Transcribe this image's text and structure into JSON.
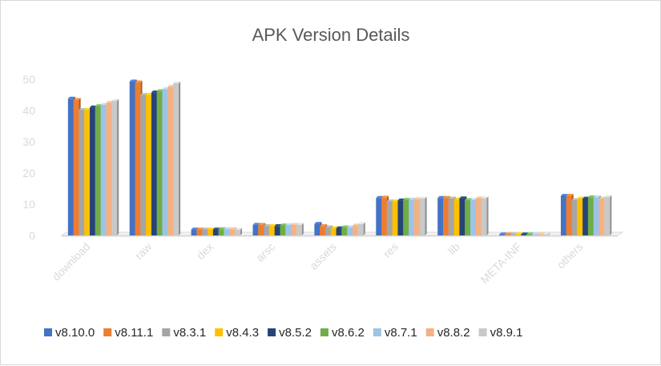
{
  "chart_data": {
    "type": "bar",
    "title": "APK Version Details",
    "xlabel": "",
    "ylabel": "",
    "ylim": [
      0,
      50
    ],
    "yticks": [
      0,
      10,
      20,
      30,
      40,
      50
    ],
    "grid": false,
    "legend_position": "bottom",
    "categories": [
      "download",
      "raw",
      "dex",
      "arsc",
      "assets",
      "res",
      "lib",
      "META-INF",
      "others"
    ],
    "series": [
      {
        "name": "v8.10.0",
        "color": "#4472c4",
        "values": [
          43.8,
          49.3,
          1.9,
          3.4,
          3.7,
          12.0,
          12.0,
          0.3,
          12.7
        ]
      },
      {
        "name": "v8.11.1",
        "color": "#ed7d31",
        "values": [
          43.4,
          49.0,
          1.9,
          3.4,
          3.0,
          12.1,
          12.0,
          0.3,
          12.7
        ]
      },
      {
        "name": "v8.3.1",
        "color": "#a5a5a5",
        "values": [
          40.2,
          45.0,
          1.9,
          3.0,
          2.6,
          10.9,
          11.8,
          0.3,
          11.3
        ]
      },
      {
        "name": "v8.4.3",
        "color": "#ffc000",
        "values": [
          40.2,
          45.0,
          1.9,
          3.0,
          2.3,
          10.9,
          11.5,
          0.3,
          11.8
        ]
      },
      {
        "name": "v8.5.2",
        "color": "#264478",
        "values": [
          41.0,
          45.8,
          1.9,
          3.0,
          2.3,
          11.2,
          11.9,
          0.3,
          11.8
        ]
      },
      {
        "name": "v8.6.2",
        "color": "#70ad47",
        "values": [
          41.4,
          46.2,
          2.0,
          3.2,
          2.6,
          11.4,
          11.3,
          0.3,
          12.2
        ]
      },
      {
        "name": "v8.7.1",
        "color": "#9dc3e6",
        "values": [
          41.8,
          46.8,
          2.0,
          3.3,
          2.6,
          11.5,
          11.3,
          0.3,
          12.2
        ]
      },
      {
        "name": "v8.8.2",
        "color": "#f4b183",
        "values": [
          42.5,
          47.6,
          2.0,
          3.4,
          3.2,
          11.6,
          11.9,
          0.3,
          11.8
        ]
      },
      {
        "name": "v8.9.1",
        "color": "#c9c9c9",
        "values": [
          43.1,
          48.7,
          1.8,
          3.4,
          3.6,
          11.8,
          11.9,
          0.3,
          12.3
        ]
      }
    ]
  }
}
